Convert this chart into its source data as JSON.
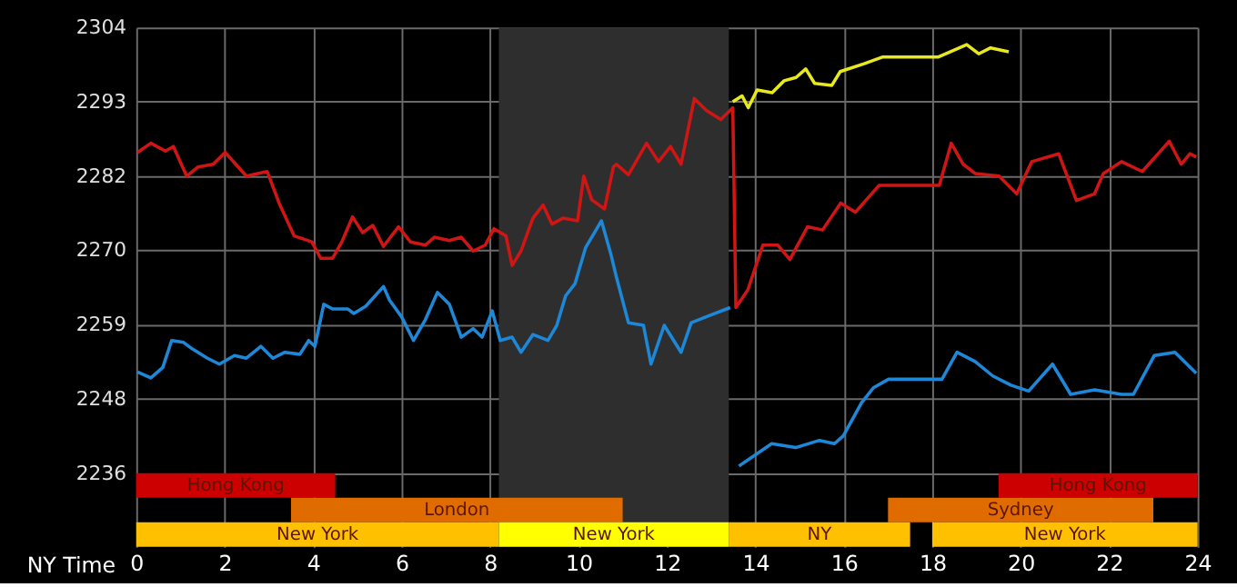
{
  "chart_data": {
    "type": "line",
    "xlim": [
      0,
      24
    ],
    "xticks": [
      0,
      2,
      4,
      6,
      8,
      10,
      12,
      14,
      16,
      18,
      20,
      22,
      24
    ],
    "xlabel": "NY Time",
    "ylim": [
      2225.2,
      2304.2
    ],
    "yticks": [
      {
        "value": 2236.4,
        "label": "2236"
      },
      {
        "value": 2247.7,
        "label": "2248"
      },
      {
        "value": 2259.0,
        "label": "2259"
      },
      {
        "value": 2270.3,
        "label": "2270"
      },
      {
        "value": 2281.6,
        "label": "2282"
      },
      {
        "value": 2292.9,
        "label": "2293"
      },
      {
        "value": 2304.2,
        "label": "2304"
      }
    ],
    "grid": true,
    "marker": "none",
    "line_style": "solid",
    "bands": [
      {
        "axis": "x",
        "from": 8.2,
        "to": 13.4,
        "color": "#2e2e2e"
      },
      {
        "axis": "x",
        "from": 0,
        "to": 4.5,
        "label": "Hong Kong",
        "color": "#cc0000"
      },
      {
        "axis": "x",
        "from": 19.5,
        "to": 24,
        "label": "Hong Kong",
        "color": "#cc0000"
      },
      {
        "axis": "x",
        "from": 3.5,
        "to": 11,
        "label": "London",
        "color": "#e06c00"
      },
      {
        "axis": "x",
        "from": 17,
        "to": 23,
        "label": "Sydney",
        "color": "#e06c00"
      },
      {
        "axis": "x",
        "from": 0,
        "to": 8.2,
        "label": "New York",
        "color": "#ffc000"
      },
      {
        "axis": "x",
        "from": 8.2,
        "to": 13.4,
        "label": "New York",
        "color": "#ffff00"
      },
      {
        "axis": "x",
        "from": 13.4,
        "to": 17.5,
        "label": "NY",
        "color": "#ffc000"
      },
      {
        "axis": "x",
        "from": 18,
        "to": 24,
        "label": "New York",
        "color": "#ffc000"
      }
    ],
    "series": [
      {
        "color": "#d01515",
        "x": [
          0.03,
          0.33,
          0.66,
          0.84,
          1.14,
          1.4,
          1.74,
          2.01,
          2.49,
          2.96,
          3.23,
          3.57,
          3.97,
          4.17,
          4.44,
          4.65,
          4.89,
          5.12,
          5.35,
          5.59,
          5.93,
          6.2,
          6.54,
          6.74,
          7.08,
          7.35,
          7.62,
          7.89,
          8.09,
          8.36,
          8.5,
          8.7,
          8.97,
          9.2,
          9.4,
          9.65,
          9.98,
          10.12,
          10.3,
          10.59,
          10.79,
          10.86,
          11.13,
          11.54,
          11.81,
          12.08,
          12.32,
          12.62,
          12.89,
          13.22,
          13.49,
          13.56,
          13.83,
          14.17,
          14.51,
          14.78,
          15.18,
          15.52,
          15.93,
          16.26,
          16.8,
          18.16,
          18.43,
          18.7,
          18.97,
          19.51,
          19.91,
          20.25,
          20.86,
          21.26,
          21.67,
          21.87,
          22.28,
          22.75,
          23.36,
          23.63,
          23.83,
          23.97
        ],
        "values": [
          2285.2,
          2286.6,
          2285.4,
          2286.1,
          2281.6,
          2283.0,
          2283.4,
          2285.2,
          2281.6,
          2282.3,
          2277.5,
          2272.5,
          2271.6,
          2269.1,
          2269.1,
          2271.6,
          2275.4,
          2273.0,
          2274.1,
          2270.9,
          2273.9,
          2271.6,
          2271.1,
          2272.3,
          2271.8,
          2272.3,
          2270.2,
          2271.1,
          2273.6,
          2272.5,
          2268.0,
          2270.2,
          2275.2,
          2277.2,
          2274.3,
          2275.2,
          2274.8,
          2281.6,
          2278.0,
          2276.6,
          2283.0,
          2283.4,
          2281.8,
          2286.6,
          2283.8,
          2286.1,
          2283.4,
          2293.4,
          2291.6,
          2290.2,
          2292.0,
          2261.6,
          2264.3,
          2271.1,
          2271.1,
          2268.9,
          2273.9,
          2273.4,
          2277.5,
          2276.1,
          2280.2,
          2280.2,
          2286.6,
          2283.4,
          2282.0,
          2281.6,
          2278.9,
          2283.8,
          2285.0,
          2277.9,
          2278.9,
          2282.0,
          2283.8,
          2282.3,
          2286.9,
          2283.4,
          2285.0,
          2284.5
        ]
      },
      {
        "color": "#1e88d8",
        "x": [
          0.03,
          0.33,
          0.6,
          0.8,
          1.07,
          1.27,
          1.61,
          1.88,
          2.22,
          2.49,
          2.82,
          3.09,
          3.36,
          3.7,
          3.9,
          4.04,
          4.24,
          4.44,
          4.78,
          4.92,
          5.19,
          5.59,
          5.73,
          6.0,
          6.27,
          6.54,
          6.81,
          7.08,
          7.35,
          7.62,
          7.82,
          8.05,
          8.23,
          8.5,
          8.7,
          8.97,
          9.31,
          9.51,
          9.71,
          9.92,
          10.16,
          10.52,
          10.73,
          10.86,
          11.13,
          11.47,
          11.64,
          11.94,
          12.32,
          12.55,
          12.89,
          13.43,
          13.5,
          13.63,
          14.37,
          14.91,
          15.45,
          15.79,
          15.99,
          16.4,
          16.67,
          17.01,
          18.22,
          18.56,
          18.97,
          19.37,
          19.78,
          20.18,
          20.72,
          21.13,
          21.67,
          22.28,
          22.55,
          23.02,
          23.49,
          23.97
        ],
        "values": [
          2251.8,
          2250.9,
          2252.5,
          2256.6,
          2256.3,
          2255.3,
          2253.9,
          2253.0,
          2254.3,
          2253.9,
          2255.7,
          2253.9,
          2254.8,
          2254.5,
          2256.6,
          2255.7,
          2262.1,
          2261.4,
          2261.4,
          2260.7,
          2261.8,
          2264.8,
          2262.7,
          2260.2,
          2256.6,
          2259.8,
          2263.9,
          2262.1,
          2257.1,
          2258.4,
          2257.1,
          2261.1,
          2256.6,
          2257.1,
          2254.8,
          2257.5,
          2256.6,
          2258.9,
          2263.4,
          2265.2,
          2270.7,
          2274.8,
          2269.8,
          2266.2,
          2259.3,
          2258.9,
          2253.0,
          2258.9,
          2254.8,
          2259.3,
          2260.2,
          2261.6,
          null,
          2237.5,
          2240.9,
          2240.3,
          2241.4,
          2240.9,
          2242.1,
          2247.1,
          2249.4,
          2250.7,
          2250.7,
          2254.8,
          2253.4,
          2251.2,
          2249.8,
          2248.9,
          2253.0,
          2248.4,
          2249.1,
          2248.4,
          2248.4,
          2254.3,
          2254.8,
          2251.6
        ]
      },
      {
        "color": "#e8e820",
        "x": [
          13.49,
          13.7,
          13.84,
          14.04,
          14.38,
          14.65,
          14.92,
          15.14,
          15.34,
          15.73,
          15.92,
          16.46,
          16.87,
          18.13,
          18.78,
          19.05,
          19.32,
          19.73
        ],
        "values": [
          2292.9,
          2293.8,
          2292.0,
          2294.7,
          2294.3,
          2296.1,
          2296.6,
          2297.9,
          2295.7,
          2295.4,
          2297.5,
          2298.7,
          2299.7,
          2299.7,
          2301.6,
          2300.2,
          2301.1,
          2300.5
        ]
      }
    ]
  }
}
